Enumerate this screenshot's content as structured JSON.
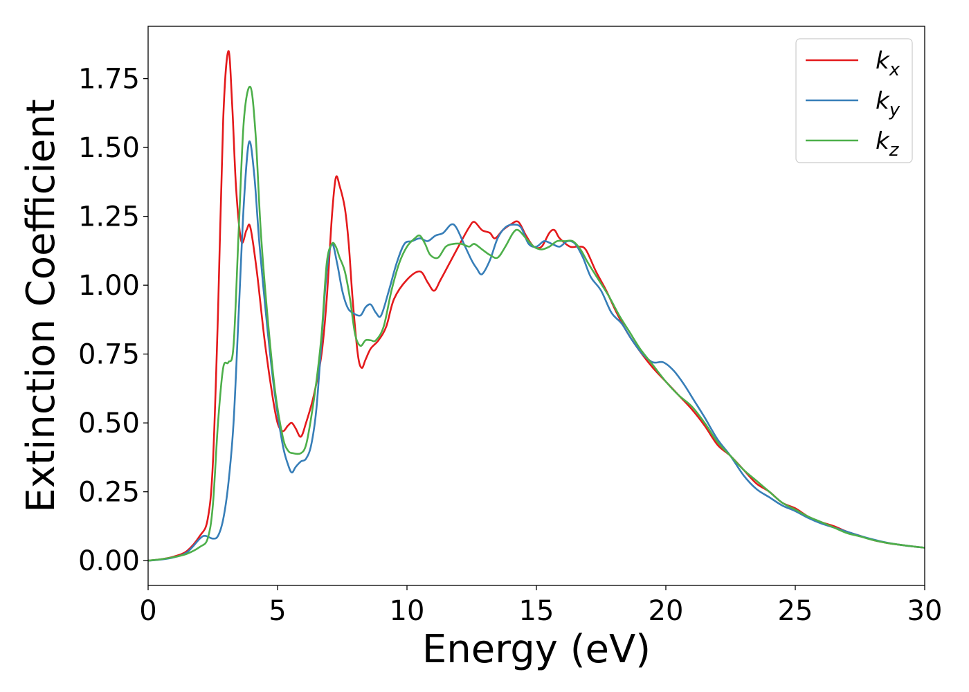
{
  "chart_data": {
    "type": "line",
    "title": "",
    "xlabel": "Energy (eV)",
    "ylabel": "Extinction Coefficient",
    "xlim": [
      0,
      30
    ],
    "ylim": [
      -0.09,
      1.94
    ],
    "xticks": [
      0,
      5,
      10,
      15,
      20,
      25,
      30
    ],
    "xtick_labels": [
      "0",
      "5",
      "10",
      "15",
      "20",
      "25",
      "30"
    ],
    "yticks": [
      0.0,
      0.25,
      0.5,
      0.75,
      1.0,
      1.25,
      1.5,
      1.75
    ],
    "ytick_labels": [
      "0.00",
      "0.25",
      "0.50",
      "0.75",
      "1.00",
      "1.25",
      "1.50",
      "1.75"
    ],
    "grid": false,
    "legend_position": "top-right",
    "series": [
      {
        "name": "k",
        "subscript": "x",
        "color": "#e41a1c",
        "points": [
          [
            0,
            0
          ],
          [
            0.5,
            0.005
          ],
          [
            1.0,
            0.015
          ],
          [
            1.5,
            0.035
          ],
          [
            2.0,
            0.09
          ],
          [
            2.3,
            0.15
          ],
          [
            2.5,
            0.35
          ],
          [
            2.7,
            0.9
          ],
          [
            2.9,
            1.6
          ],
          [
            3.1,
            1.85
          ],
          [
            3.25,
            1.65
          ],
          [
            3.4,
            1.35
          ],
          [
            3.6,
            1.16
          ],
          [
            3.8,
            1.2
          ],
          [
            3.95,
            1.21
          ],
          [
            4.2,
            1.05
          ],
          [
            4.5,
            0.8
          ],
          [
            4.8,
            0.6
          ],
          [
            5.0,
            0.5
          ],
          [
            5.2,
            0.47
          ],
          [
            5.4,
            0.49
          ],
          [
            5.55,
            0.5
          ],
          [
            5.7,
            0.48
          ],
          [
            5.9,
            0.45
          ],
          [
            6.1,
            0.5
          ],
          [
            6.4,
            0.6
          ],
          [
            6.7,
            0.75
          ],
          [
            6.9,
            0.95
          ],
          [
            7.1,
            1.25
          ],
          [
            7.25,
            1.39
          ],
          [
            7.4,
            1.36
          ],
          [
            7.6,
            1.28
          ],
          [
            7.75,
            1.15
          ],
          [
            7.9,
            0.95
          ],
          [
            8.1,
            0.75
          ],
          [
            8.25,
            0.7
          ],
          [
            8.4,
            0.73
          ],
          [
            8.6,
            0.77
          ],
          [
            8.9,
            0.8
          ],
          [
            9.2,
            0.85
          ],
          [
            9.5,
            0.95
          ],
          [
            10.0,
            1.02
          ],
          [
            10.5,
            1.05
          ],
          [
            10.8,
            1.01
          ],
          [
            11.05,
            0.98
          ],
          [
            11.3,
            1.02
          ],
          [
            11.7,
            1.09
          ],
          [
            12.1,
            1.16
          ],
          [
            12.4,
            1.21
          ],
          [
            12.6,
            1.23
          ],
          [
            12.9,
            1.2
          ],
          [
            13.2,
            1.19
          ],
          [
            13.4,
            1.17
          ],
          [
            13.7,
            1.2
          ],
          [
            14.0,
            1.22
          ],
          [
            14.3,
            1.23
          ],
          [
            14.6,
            1.18
          ],
          [
            14.9,
            1.14
          ],
          [
            15.2,
            1.14
          ],
          [
            15.5,
            1.19
          ],
          [
            15.7,
            1.2
          ],
          [
            15.9,
            1.17
          ],
          [
            16.3,
            1.14
          ],
          [
            16.6,
            1.14
          ],
          [
            16.9,
            1.13
          ],
          [
            17.3,
            1.05
          ],
          [
            17.7,
            0.98
          ],
          [
            18.1,
            0.9
          ],
          [
            18.5,
            0.83
          ],
          [
            19.0,
            0.76
          ],
          [
            19.5,
            0.7
          ],
          [
            20.0,
            0.65
          ],
          [
            20.5,
            0.6
          ],
          [
            21.0,
            0.55
          ],
          [
            21.5,
            0.49
          ],
          [
            22.0,
            0.42
          ],
          [
            22.5,
            0.38
          ],
          [
            23.0,
            0.33
          ],
          [
            23.5,
            0.28
          ],
          [
            24.0,
            0.25
          ],
          [
            24.5,
            0.21
          ],
          [
            25.0,
            0.19
          ],
          [
            25.5,
            0.16
          ],
          [
            26.0,
            0.14
          ],
          [
            26.5,
            0.125
          ],
          [
            27.0,
            0.105
          ],
          [
            27.5,
            0.09
          ],
          [
            28.0,
            0.075
          ],
          [
            28.5,
            0.065
          ],
          [
            29.0,
            0.058
          ],
          [
            29.5,
            0.052
          ],
          [
            30.0,
            0.047
          ]
        ]
      },
      {
        "name": "k",
        "subscript": "y",
        "color": "#377eb8",
        "points": [
          [
            0,
            0
          ],
          [
            0.5,
            0.004
          ],
          [
            1.0,
            0.012
          ],
          [
            1.5,
            0.03
          ],
          [
            2.0,
            0.08
          ],
          [
            2.2,
            0.09
          ],
          [
            2.5,
            0.08
          ],
          [
            2.7,
            0.09
          ],
          [
            2.9,
            0.15
          ],
          [
            3.1,
            0.28
          ],
          [
            3.3,
            0.5
          ],
          [
            3.5,
            0.9
          ],
          [
            3.7,
            1.3
          ],
          [
            3.9,
            1.52
          ],
          [
            4.1,
            1.4
          ],
          [
            4.3,
            1.15
          ],
          [
            4.6,
            0.85
          ],
          [
            4.9,
            0.6
          ],
          [
            5.2,
            0.42
          ],
          [
            5.4,
            0.35
          ],
          [
            5.55,
            0.32
          ],
          [
            5.7,
            0.34
          ],
          [
            5.9,
            0.36
          ],
          [
            6.1,
            0.37
          ],
          [
            6.3,
            0.42
          ],
          [
            6.5,
            0.55
          ],
          [
            6.7,
            0.8
          ],
          [
            6.9,
            1.05
          ],
          [
            7.1,
            1.15
          ],
          [
            7.3,
            1.08
          ],
          [
            7.5,
            0.98
          ],
          [
            7.7,
            0.92
          ],
          [
            7.9,
            0.9
          ],
          [
            8.2,
            0.89
          ],
          [
            8.4,
            0.92
          ],
          [
            8.6,
            0.93
          ],
          [
            8.8,
            0.9
          ],
          [
            9.0,
            0.89
          ],
          [
            9.3,
            0.98
          ],
          [
            9.6,
            1.08
          ],
          [
            9.9,
            1.15
          ],
          [
            10.2,
            1.16
          ],
          [
            10.5,
            1.17
          ],
          [
            10.8,
            1.16
          ],
          [
            11.1,
            1.18
          ],
          [
            11.4,
            1.19
          ],
          [
            11.7,
            1.22
          ],
          [
            11.9,
            1.21
          ],
          [
            12.2,
            1.15
          ],
          [
            12.5,
            1.09
          ],
          [
            12.7,
            1.06
          ],
          [
            12.9,
            1.04
          ],
          [
            13.2,
            1.09
          ],
          [
            13.5,
            1.17
          ],
          [
            13.8,
            1.21
          ],
          [
            14.1,
            1.22
          ],
          [
            14.4,
            1.21
          ],
          [
            14.7,
            1.15
          ],
          [
            15.0,
            1.14
          ],
          [
            15.3,
            1.16
          ],
          [
            15.6,
            1.15
          ],
          [
            15.9,
            1.14
          ],
          [
            16.2,
            1.16
          ],
          [
            16.5,
            1.15
          ],
          [
            16.8,
            1.1
          ],
          [
            17.1,
            1.03
          ],
          [
            17.5,
            0.98
          ],
          [
            17.9,
            0.9
          ],
          [
            18.3,
            0.86
          ],
          [
            18.7,
            0.8
          ],
          [
            19.1,
            0.75
          ],
          [
            19.5,
            0.72
          ],
          [
            19.9,
            0.72
          ],
          [
            20.3,
            0.69
          ],
          [
            20.7,
            0.64
          ],
          [
            21.1,
            0.58
          ],
          [
            21.5,
            0.52
          ],
          [
            22.0,
            0.44
          ],
          [
            22.5,
            0.38
          ],
          [
            23.0,
            0.31
          ],
          [
            23.5,
            0.26
          ],
          [
            24.0,
            0.23
          ],
          [
            24.5,
            0.2
          ],
          [
            25.0,
            0.18
          ],
          [
            25.5,
            0.155
          ],
          [
            26.0,
            0.135
          ],
          [
            26.5,
            0.12
          ],
          [
            27.0,
            0.105
          ],
          [
            27.5,
            0.09
          ],
          [
            28.0,
            0.077
          ],
          [
            28.5,
            0.066
          ],
          [
            29.0,
            0.058
          ],
          [
            29.5,
            0.052
          ],
          [
            30.0,
            0.047
          ]
        ]
      },
      {
        "name": "k",
        "subscript": "z",
        "color": "#4daf4a",
        "points": [
          [
            0,
            0
          ],
          [
            0.5,
            0.005
          ],
          [
            1.0,
            0.013
          ],
          [
            1.5,
            0.025
          ],
          [
            2.0,
            0.05
          ],
          [
            2.3,
            0.08
          ],
          [
            2.5,
            0.2
          ],
          [
            2.7,
            0.5
          ],
          [
            2.9,
            0.7
          ],
          [
            3.1,
            0.72
          ],
          [
            3.3,
            0.78
          ],
          [
            3.5,
            1.2
          ],
          [
            3.7,
            1.6
          ],
          [
            3.95,
            1.72
          ],
          [
            4.15,
            1.55
          ],
          [
            4.35,
            1.2
          ],
          [
            4.6,
            0.9
          ],
          [
            4.9,
            0.62
          ],
          [
            5.2,
            0.45
          ],
          [
            5.4,
            0.4
          ],
          [
            5.6,
            0.39
          ],
          [
            5.9,
            0.39
          ],
          [
            6.1,
            0.42
          ],
          [
            6.3,
            0.52
          ],
          [
            6.5,
            0.65
          ],
          [
            6.7,
            0.82
          ],
          [
            6.9,
            1.08
          ],
          [
            7.1,
            1.15
          ],
          [
            7.25,
            1.14
          ],
          [
            7.4,
            1.1
          ],
          [
            7.6,
            1.05
          ],
          [
            7.8,
            0.95
          ],
          [
            8.0,
            0.82
          ],
          [
            8.2,
            0.78
          ],
          [
            8.4,
            0.8
          ],
          [
            8.6,
            0.8
          ],
          [
            8.8,
            0.8
          ],
          [
            9.1,
            0.85
          ],
          [
            9.4,
            0.98
          ],
          [
            9.7,
            1.08
          ],
          [
            10.0,
            1.14
          ],
          [
            10.3,
            1.17
          ],
          [
            10.5,
            1.18
          ],
          [
            10.7,
            1.15
          ],
          [
            10.9,
            1.11
          ],
          [
            11.2,
            1.1
          ],
          [
            11.5,
            1.14
          ],
          [
            11.8,
            1.15
          ],
          [
            12.1,
            1.15
          ],
          [
            12.4,
            1.14
          ],
          [
            12.6,
            1.15
          ],
          [
            12.9,
            1.13
          ],
          [
            13.2,
            1.11
          ],
          [
            13.5,
            1.1
          ],
          [
            13.8,
            1.14
          ],
          [
            14.1,
            1.19
          ],
          [
            14.3,
            1.2
          ],
          [
            14.6,
            1.17
          ],
          [
            14.9,
            1.14
          ],
          [
            15.2,
            1.13
          ],
          [
            15.5,
            1.14
          ],
          [
            15.8,
            1.16
          ],
          [
            16.1,
            1.16
          ],
          [
            16.4,
            1.16
          ],
          [
            16.7,
            1.13
          ],
          [
            17.0,
            1.08
          ],
          [
            17.4,
            1.02
          ],
          [
            17.8,
            0.96
          ],
          [
            18.2,
            0.89
          ],
          [
            18.6,
            0.83
          ],
          [
            19.0,
            0.77
          ],
          [
            19.5,
            0.71
          ],
          [
            20.0,
            0.65
          ],
          [
            20.5,
            0.6
          ],
          [
            21.0,
            0.56
          ],
          [
            21.5,
            0.5
          ],
          [
            22.0,
            0.43
          ],
          [
            22.5,
            0.38
          ],
          [
            23.0,
            0.33
          ],
          [
            23.5,
            0.29
          ],
          [
            24.0,
            0.25
          ],
          [
            24.5,
            0.21
          ],
          [
            25.0,
            0.185
          ],
          [
            25.5,
            0.16
          ],
          [
            26.0,
            0.14
          ],
          [
            26.5,
            0.12
          ],
          [
            27.0,
            0.1
          ],
          [
            27.5,
            0.088
          ],
          [
            28.0,
            0.075
          ],
          [
            28.5,
            0.065
          ],
          [
            29.0,
            0.058
          ],
          [
            29.5,
            0.052
          ],
          [
            30.0,
            0.047
          ]
        ]
      }
    ]
  }
}
